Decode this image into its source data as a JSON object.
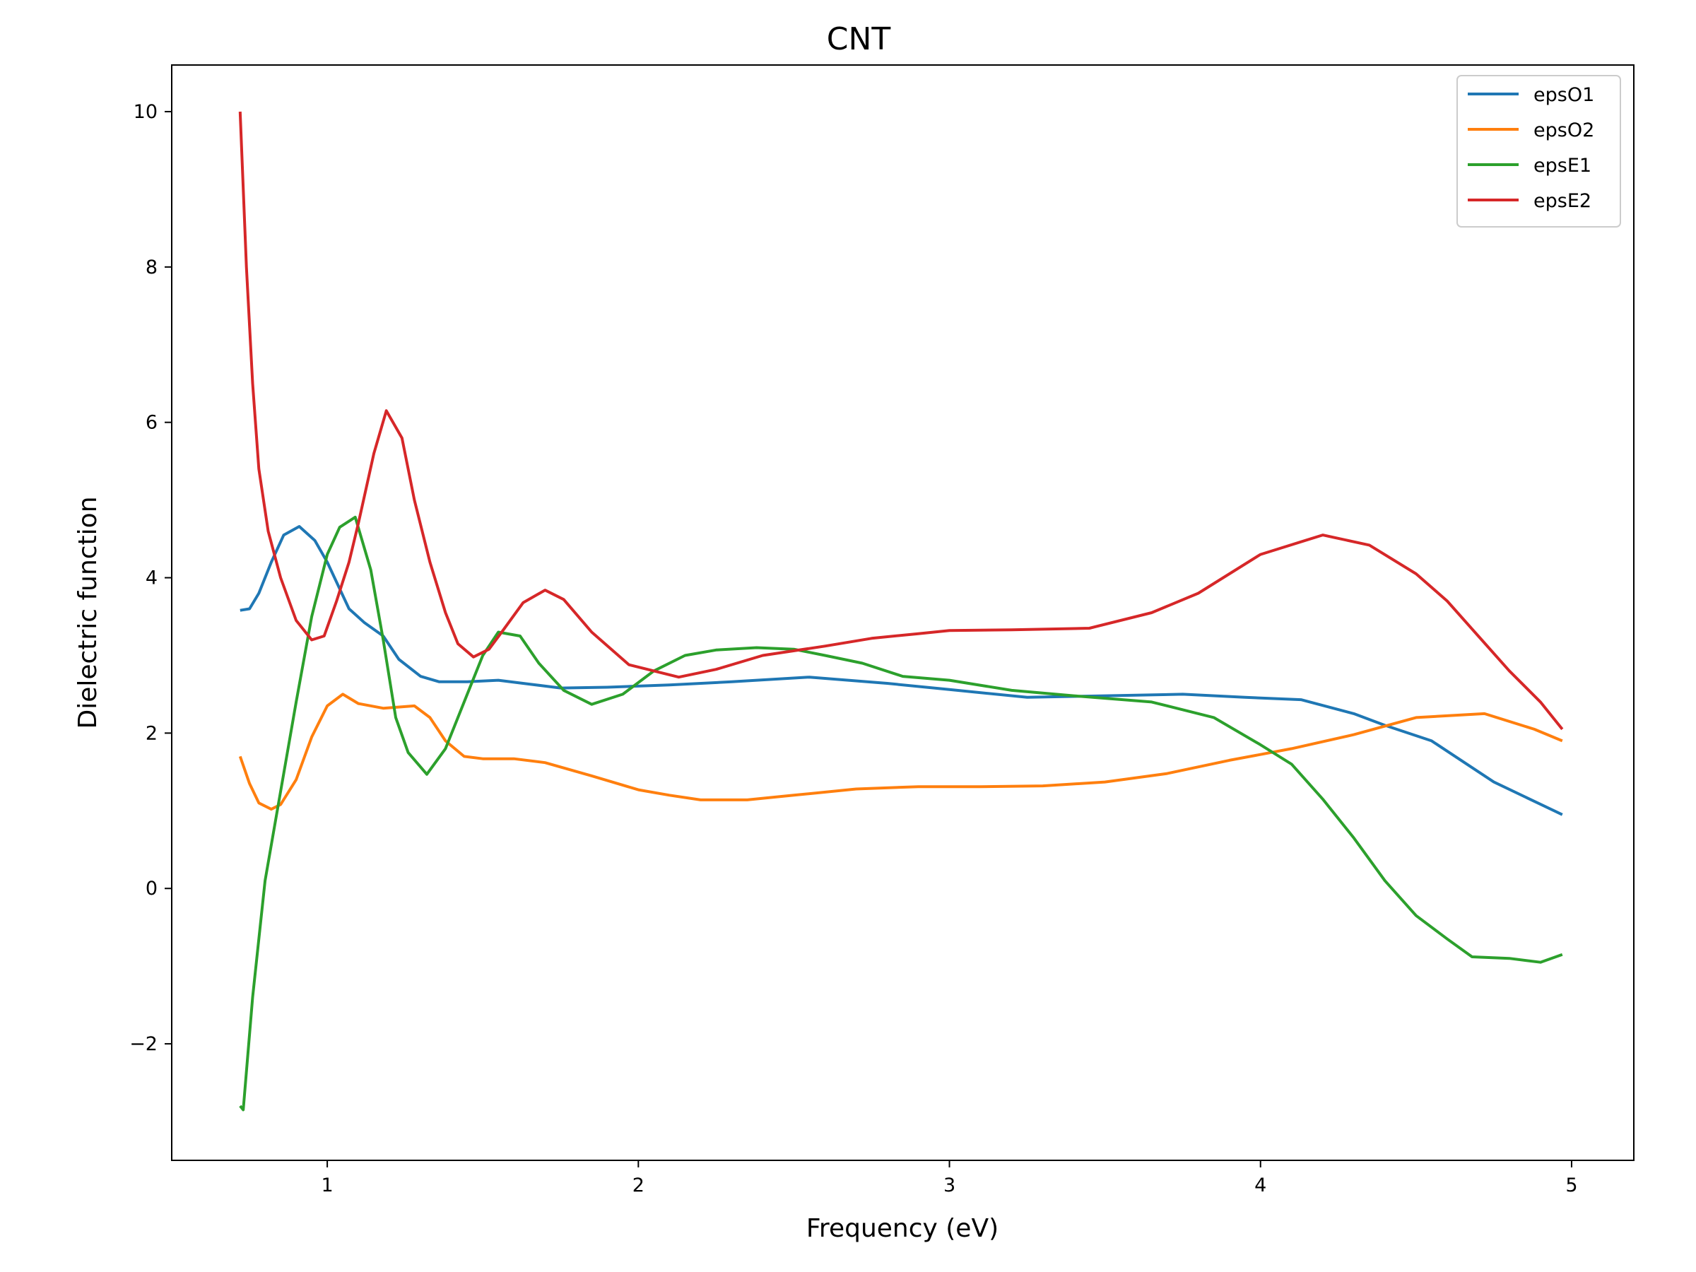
{
  "chart_data": {
    "type": "line",
    "title": "CNT",
    "xlabel": "Frequency (eV)",
    "ylabel": "Dielectric function",
    "xlim": [
      0.5,
      5.2
    ],
    "ylim": [
      -3.5,
      10.6
    ],
    "xticks": [
      1,
      2,
      3,
      4,
      5
    ],
    "xtick_labels": [
      "1",
      "2",
      "3",
      "4",
      "5"
    ],
    "yticks": [
      -2,
      0,
      2,
      4,
      6,
      8,
      10
    ],
    "ytick_labels": [
      "−2",
      "0",
      "2",
      "4",
      "6",
      "8",
      "10"
    ],
    "grid": false,
    "legend_position": "top-right",
    "series": [
      {
        "name": "epsO1",
        "color": "#1f77b4",
        "points": [
          [
            0.72,
            3.58
          ],
          [
            0.75,
            3.6
          ],
          [
            0.78,
            3.8
          ],
          [
            0.82,
            4.2
          ],
          [
            0.86,
            4.55
          ],
          [
            0.91,
            4.66
          ],
          [
            0.96,
            4.48
          ],
          [
            1.0,
            4.2
          ],
          [
            1.07,
            3.6
          ],
          [
            1.12,
            3.42
          ],
          [
            1.18,
            3.25
          ],
          [
            1.23,
            2.95
          ],
          [
            1.3,
            2.73
          ],
          [
            1.36,
            2.66
          ],
          [
            1.45,
            2.66
          ],
          [
            1.55,
            2.68
          ],
          [
            1.65,
            2.63
          ],
          [
            1.75,
            2.58
          ],
          [
            1.9,
            2.59
          ],
          [
            2.1,
            2.62
          ],
          [
            2.3,
            2.66
          ],
          [
            2.55,
            2.72
          ],
          [
            2.8,
            2.64
          ],
          [
            3.0,
            2.56
          ],
          [
            3.25,
            2.46
          ],
          [
            3.5,
            2.48
          ],
          [
            3.75,
            2.5
          ],
          [
            3.95,
            2.46
          ],
          [
            4.13,
            2.43
          ],
          [
            4.3,
            2.25
          ],
          [
            4.4,
            2.1
          ],
          [
            4.55,
            1.9
          ],
          [
            4.75,
            1.37
          ],
          [
            4.97,
            0.95
          ]
        ]
      },
      {
        "name": "epsO2",
        "color": "#ff7f0e",
        "points": [
          [
            0.72,
            1.7
          ],
          [
            0.75,
            1.35
          ],
          [
            0.78,
            1.1
          ],
          [
            0.82,
            1.02
          ],
          [
            0.85,
            1.08
          ],
          [
            0.9,
            1.4
          ],
          [
            0.95,
            1.95
          ],
          [
            1.0,
            2.35
          ],
          [
            1.05,
            2.5
          ],
          [
            1.1,
            2.38
          ],
          [
            1.18,
            2.32
          ],
          [
            1.28,
            2.35
          ],
          [
            1.33,
            2.2
          ],
          [
            1.38,
            1.9
          ],
          [
            1.44,
            1.7
          ],
          [
            1.5,
            1.67
          ],
          [
            1.6,
            1.67
          ],
          [
            1.7,
            1.62
          ],
          [
            1.85,
            1.45
          ],
          [
            2.0,
            1.27
          ],
          [
            2.1,
            1.2
          ],
          [
            2.2,
            1.14
          ],
          [
            2.35,
            1.14
          ],
          [
            2.5,
            1.2
          ],
          [
            2.7,
            1.28
          ],
          [
            2.9,
            1.31
          ],
          [
            3.1,
            1.31
          ],
          [
            3.3,
            1.32
          ],
          [
            3.5,
            1.37
          ],
          [
            3.7,
            1.48
          ],
          [
            3.9,
            1.65
          ],
          [
            4.1,
            1.8
          ],
          [
            4.3,
            1.98
          ],
          [
            4.5,
            2.2
          ],
          [
            4.72,
            2.25
          ],
          [
            4.88,
            2.05
          ],
          [
            4.97,
            1.9
          ]
        ]
      },
      {
        "name": "epsE1",
        "color": "#2ca02c",
        "points": [
          [
            0.72,
            -2.8
          ],
          [
            0.73,
            -2.85
          ],
          [
            0.76,
            -1.4
          ],
          [
            0.8,
            0.1
          ],
          [
            0.85,
            1.25
          ],
          [
            0.9,
            2.4
          ],
          [
            0.95,
            3.5
          ],
          [
            1.0,
            4.3
          ],
          [
            1.04,
            4.65
          ],
          [
            1.09,
            4.78
          ],
          [
            1.14,
            4.1
          ],
          [
            1.18,
            3.2
          ],
          [
            1.22,
            2.2
          ],
          [
            1.26,
            1.75
          ],
          [
            1.32,
            1.47
          ],
          [
            1.38,
            1.8
          ],
          [
            1.44,
            2.4
          ],
          [
            1.5,
            3.0
          ],
          [
            1.55,
            3.3
          ],
          [
            1.62,
            3.25
          ],
          [
            1.68,
            2.9
          ],
          [
            1.76,
            2.55
          ],
          [
            1.85,
            2.37
          ],
          [
            1.95,
            2.5
          ],
          [
            2.05,
            2.8
          ],
          [
            2.15,
            3.0
          ],
          [
            2.25,
            3.07
          ],
          [
            2.38,
            3.1
          ],
          [
            2.5,
            3.08
          ],
          [
            2.6,
            3.0
          ],
          [
            2.72,
            2.9
          ],
          [
            2.85,
            2.73
          ],
          [
            3.0,
            2.68
          ],
          [
            3.2,
            2.55
          ],
          [
            3.4,
            2.48
          ],
          [
            3.65,
            2.4
          ],
          [
            3.85,
            2.2
          ],
          [
            4.0,
            1.85
          ],
          [
            4.1,
            1.6
          ],
          [
            4.2,
            1.15
          ],
          [
            4.3,
            0.65
          ],
          [
            4.4,
            0.1
          ],
          [
            4.5,
            -0.35
          ],
          [
            4.6,
            -0.65
          ],
          [
            4.68,
            -0.88
          ],
          [
            4.8,
            -0.9
          ],
          [
            4.9,
            -0.95
          ],
          [
            4.97,
            -0.85
          ]
        ]
      },
      {
        "name": "epsE2",
        "color": "#d62728",
        "points": [
          [
            0.72,
            10.0
          ],
          [
            0.74,
            8.0
          ],
          [
            0.76,
            6.5
          ],
          [
            0.78,
            5.4
          ],
          [
            0.81,
            4.6
          ],
          [
            0.85,
            4.0
          ],
          [
            0.9,
            3.45
          ],
          [
            0.95,
            3.2
          ],
          [
            0.99,
            3.25
          ],
          [
            1.03,
            3.7
          ],
          [
            1.07,
            4.2
          ],
          [
            1.1,
            4.7
          ],
          [
            1.15,
            5.6
          ],
          [
            1.19,
            6.15
          ],
          [
            1.24,
            5.8
          ],
          [
            1.28,
            5.0
          ],
          [
            1.33,
            4.2
          ],
          [
            1.38,
            3.55
          ],
          [
            1.42,
            3.15
          ],
          [
            1.47,
            2.98
          ],
          [
            1.52,
            3.08
          ],
          [
            1.57,
            3.35
          ],
          [
            1.63,
            3.68
          ],
          [
            1.7,
            3.84
          ],
          [
            1.76,
            3.72
          ],
          [
            1.85,
            3.3
          ],
          [
            1.97,
            2.88
          ],
          [
            2.05,
            2.8
          ],
          [
            2.13,
            2.72
          ],
          [
            2.25,
            2.82
          ],
          [
            2.4,
            3.0
          ],
          [
            2.6,
            3.12
          ],
          [
            2.75,
            3.22
          ],
          [
            2.9,
            3.28
          ],
          [
            3.0,
            3.32
          ],
          [
            3.2,
            3.33
          ],
          [
            3.45,
            3.35
          ],
          [
            3.65,
            3.55
          ],
          [
            3.8,
            3.8
          ],
          [
            4.0,
            4.3
          ],
          [
            4.2,
            4.55
          ],
          [
            4.35,
            4.42
          ],
          [
            4.5,
            4.05
          ],
          [
            4.6,
            3.7
          ],
          [
            4.7,
            3.25
          ],
          [
            4.8,
            2.8
          ],
          [
            4.9,
            2.4
          ],
          [
            4.97,
            2.05
          ]
        ]
      }
    ]
  }
}
